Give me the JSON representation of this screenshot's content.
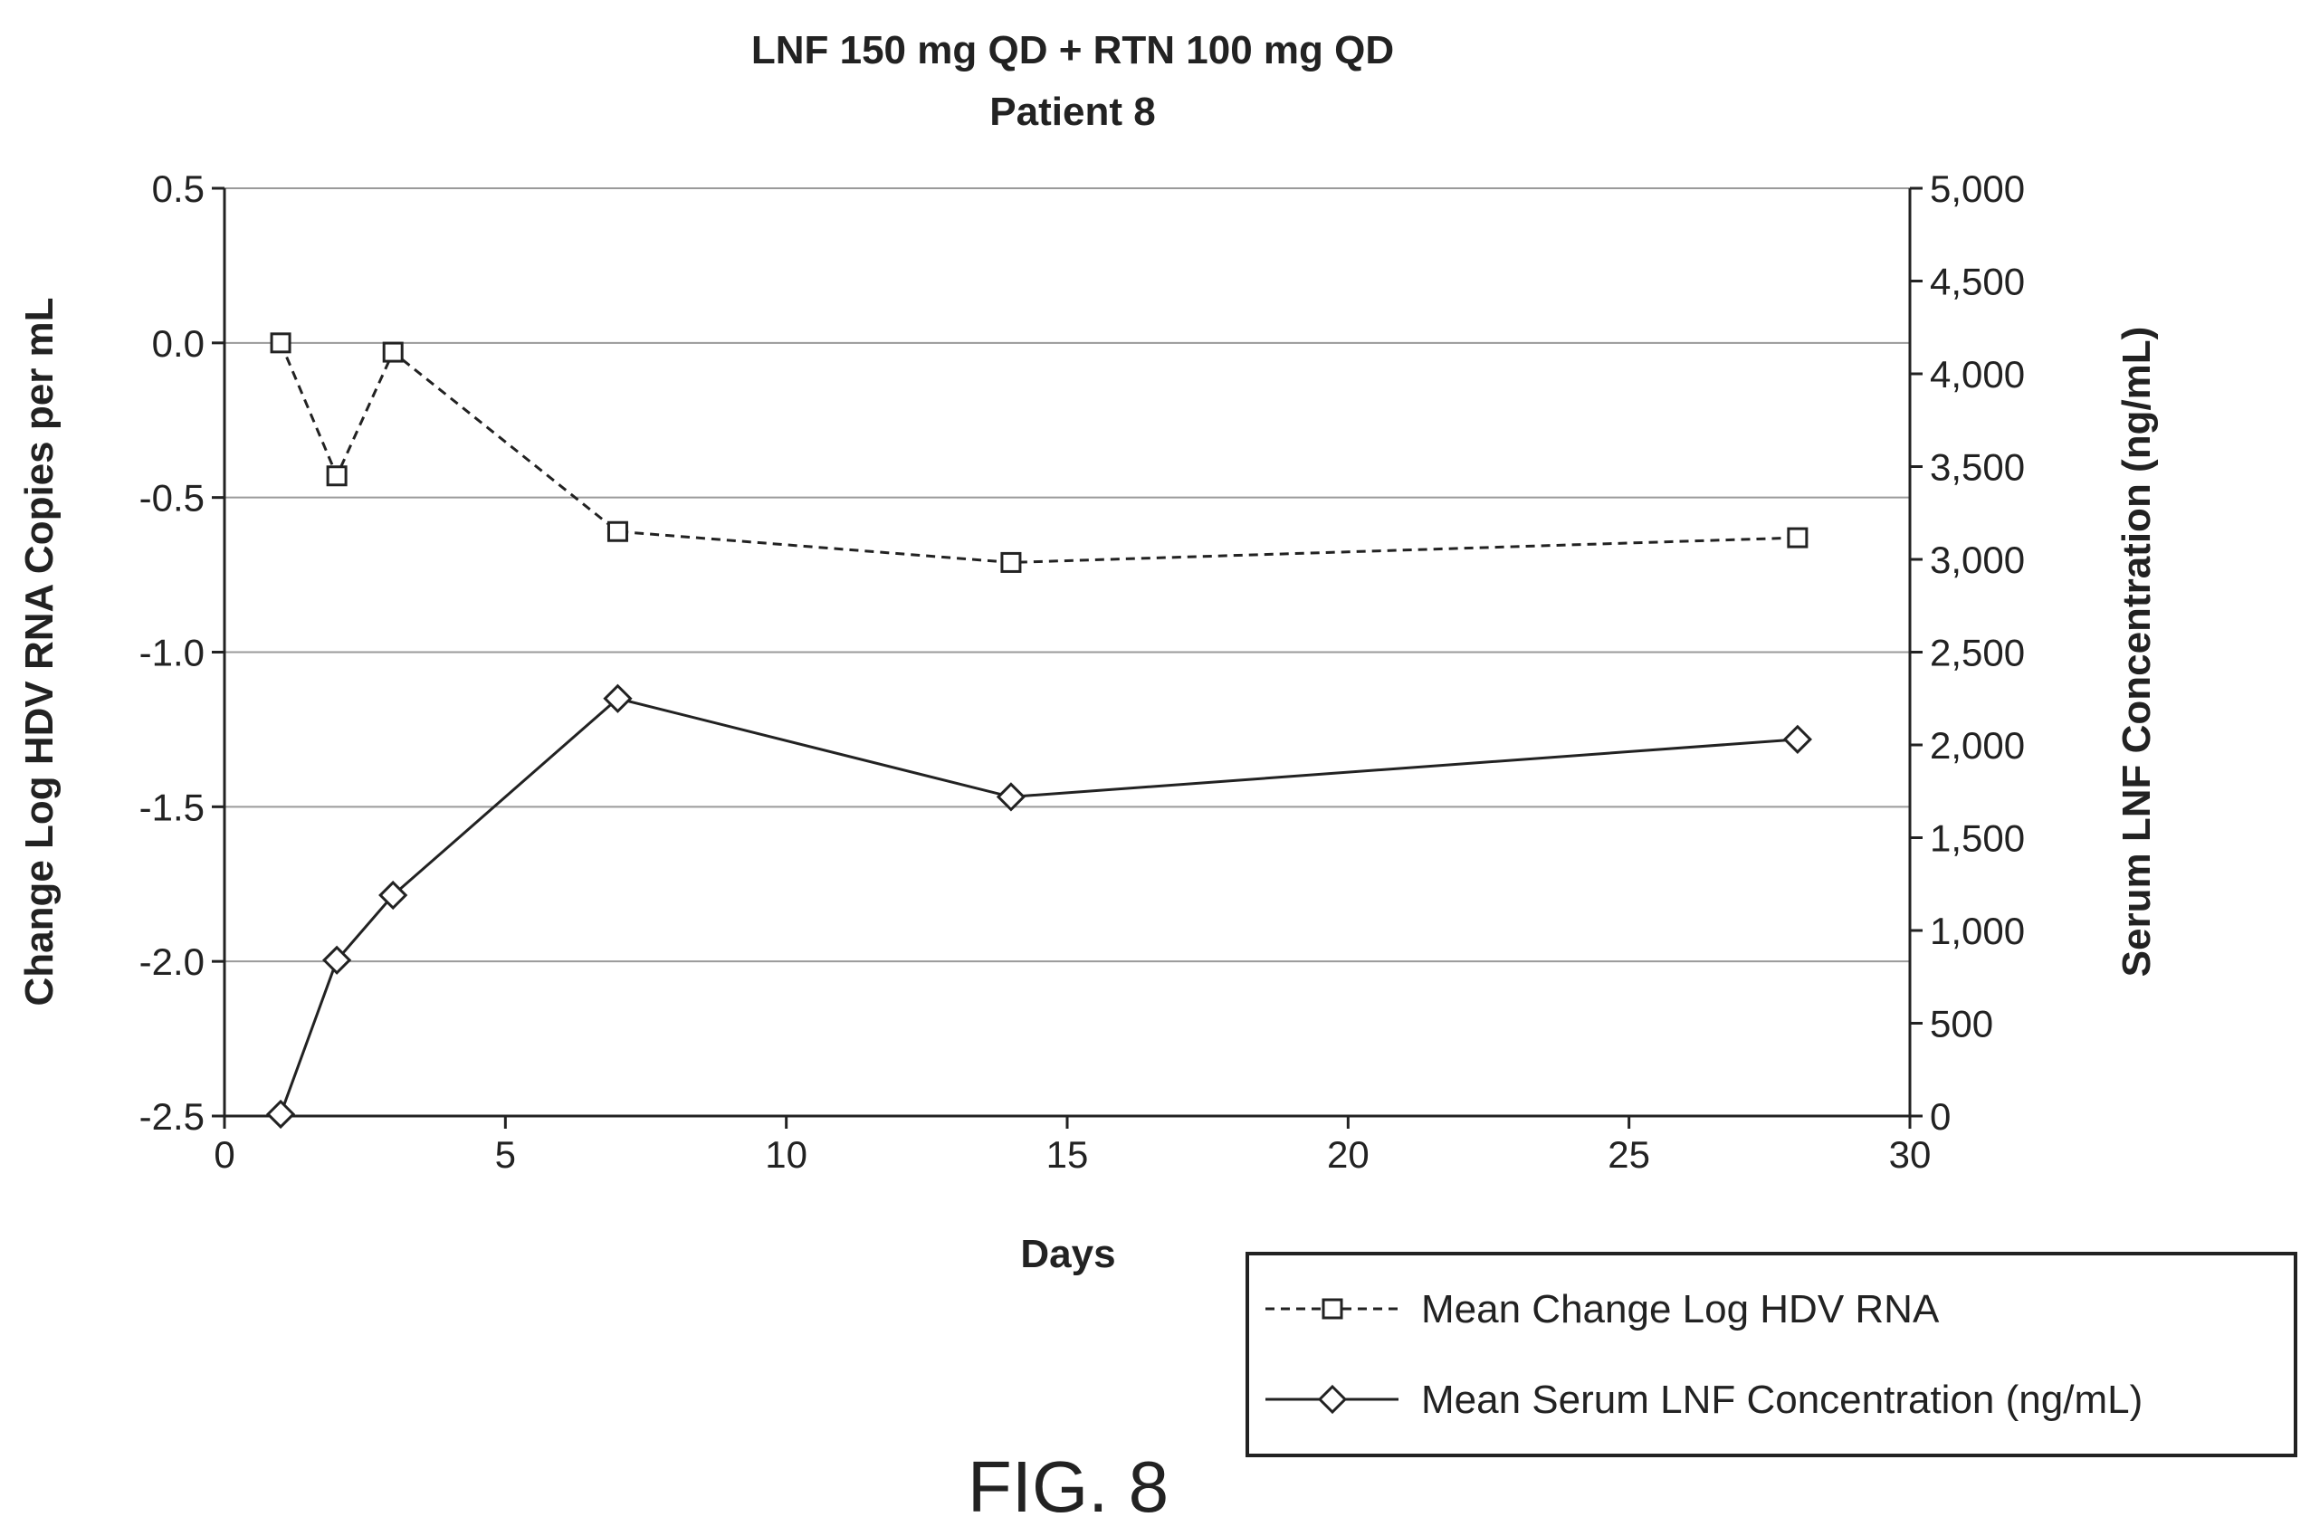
{
  "chart_data": {
    "type": "line",
    "title": "LNF 150 mg QD + RTN 100 mg QD",
    "subtitle": "Patient 8",
    "xlabel": "Days",
    "ylabel_left": "Change Log HDV RNA Copies per mL",
    "ylabel_right": "Serum LNF Concentration (ng/mL)",
    "xlim": [
      0,
      30
    ],
    "ylim_left": [
      -2.5,
      0.5
    ],
    "ylim_right": [
      0,
      5000
    ],
    "x_ticks": [
      "0",
      "5",
      "10",
      "15",
      "20",
      "25",
      "30"
    ],
    "y_left_ticks": [
      "0.5",
      "0.0",
      "-0.5",
      "-1.0",
      "-1.5",
      "-2.0",
      "-2.5"
    ],
    "y_right_ticks": [
      "5,000",
      "4,500",
      "4,000",
      "3,500",
      "3,000",
      "2,500",
      "2,000",
      "1,500",
      "1,000",
      "500",
      "0"
    ],
    "grid": "horizontal",
    "legend_position": "bottom-right",
    "series": [
      {
        "name": "Mean Change Log HDV RNA",
        "axis": "left",
        "style": "dashed",
        "marker": "square",
        "x": [
          1,
          2,
          3,
          7,
          14,
          28
        ],
        "y": [
          0.0,
          -0.43,
          -0.03,
          -0.61,
          -0.71,
          -0.63
        ]
      },
      {
        "name": "Mean Serum LNF Concentration (ng/mL)",
        "axis": "right",
        "style": "solid",
        "marker": "diamond",
        "x": [
          1,
          2,
          3,
          7,
          14,
          28
        ],
        "y": [
          10,
          840,
          1190,
          2250,
          1720,
          2030
        ]
      }
    ]
  },
  "figure_label": "FIG. 8",
  "colors": {
    "line": "#222222",
    "grid": "#9a9a9a",
    "background": "#ffffff"
  }
}
